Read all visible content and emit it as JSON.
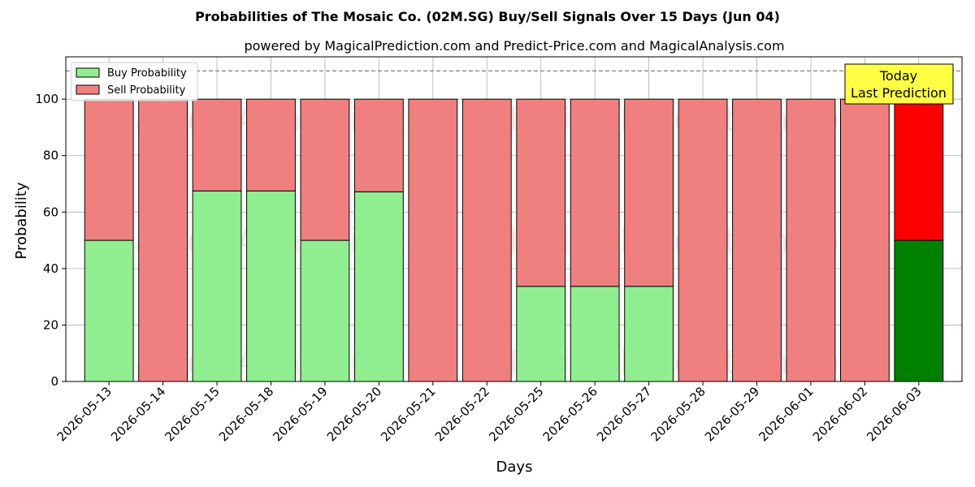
{
  "chart_data": {
    "type": "bar",
    "title": "Probabilities of The Mosaic Co. (02M.SG) Buy/Sell Signals Over 15 Days (Jun 04)",
    "subtitle": "powered by MagicalPrediction.com and Predict-Price.com and MagicalAnalysis.com",
    "xlabel": "Days",
    "ylabel": "Probability",
    "ylim": [
      0,
      115
    ],
    "yticks": [
      0,
      20,
      40,
      60,
      80,
      100
    ],
    "reference_line": 110,
    "stacked": true,
    "grid": true,
    "legend_position": "top-left",
    "categories": [
      "2026-05-13",
      "2026-05-14",
      "2026-05-15",
      "2026-05-18",
      "2026-05-19",
      "2026-05-20",
      "2026-05-21",
      "2026-05-22",
      "2026-05-25",
      "2026-05-26",
      "2026-05-27",
      "2026-05-28",
      "2026-05-29",
      "2026-06-01",
      "2026-06-02",
      "2026-06-03"
    ],
    "series": [
      {
        "name": "Buy Probability",
        "color": "#90ee90",
        "highlight_color": "#008000",
        "values": [
          50,
          0,
          67.5,
          67.5,
          50,
          67.2,
          0,
          0,
          33.7,
          33.7,
          33.7,
          0,
          0,
          0,
          0,
          50
        ]
      },
      {
        "name": "Sell Probability",
        "color": "#f08080",
        "highlight_color": "#ff0000",
        "values": [
          50,
          100,
          32.5,
          32.5,
          50,
          32.8,
          100,
          100,
          66.3,
          66.3,
          66.3,
          100,
          100,
          100,
          100,
          50
        ]
      }
    ],
    "annotation": {
      "line1": "Today",
      "line2": "Last Prediction",
      "color": "#ffff44"
    },
    "watermarks": [
      "MagicalAnalysis.com",
      "MagicalPrediction.com"
    ]
  }
}
